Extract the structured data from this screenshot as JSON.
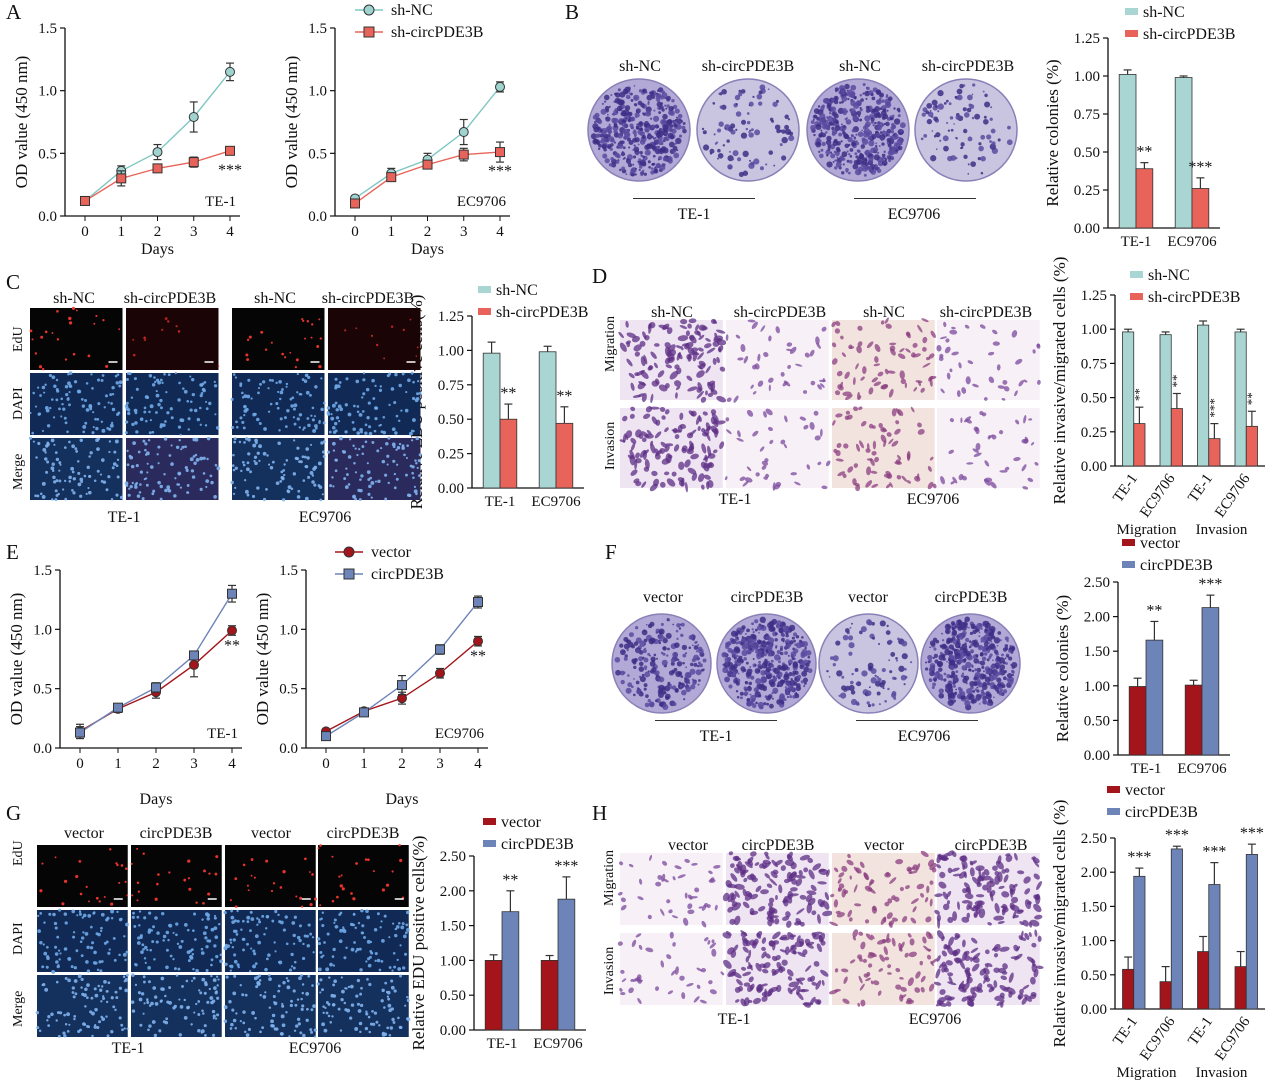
{
  "panel_labels": {
    "A": "A",
    "B": "B",
    "C": "C",
    "D": "D",
    "E": "E",
    "F": "F",
    "G": "G",
    "H": "H"
  },
  "groups": {
    "knockdown": [
      "sh-NC",
      "sh-circPDE3B"
    ],
    "overexpression": [
      "vector",
      "circPDE3B"
    ],
    "cell_lines": [
      "TE-1",
      "EC9706"
    ],
    "stains": [
      "EdU",
      "DAPI",
      "Merge"
    ],
    "assays": [
      "Migration",
      "Invasion"
    ]
  },
  "colors": {
    "shNC": "#a9d6d3",
    "shNC_marker": "#9fd3cf",
    "shcirc": "#e8645a",
    "vector": "#a3151b",
    "circPDE3B": "#6d84b8",
    "crystal_violet_plate": "#8d7fbf",
    "micro_migration": "#cfbfe0",
    "edu_dark": "#050505"
  },
  "chart_data": [
    {
      "id": "A-TE-1",
      "type": "line",
      "xlabel": "Days",
      "ylabel": "OD value (450 nm)",
      "annotation": "TE-1",
      "sig": "***",
      "x": [
        0,
        1,
        2,
        3,
        4
      ],
      "ylim": [
        0,
        1.5
      ],
      "yticks": [
        "0.0",
        "0.5",
        "1.0",
        "1.5"
      ],
      "series": [
        {
          "name": "sh-NC",
          "values": [
            0.12,
            0.36,
            0.51,
            0.79,
            1.15
          ],
          "err": [
            0.03,
            0.04,
            0.06,
            0.12,
            0.07
          ]
        },
        {
          "name": "sh-circPDE3B",
          "values": [
            0.12,
            0.3,
            0.38,
            0.43,
            0.52
          ],
          "err": [
            0.03,
            0.06,
            0.03,
            0.04,
            0.03
          ]
        }
      ]
    },
    {
      "id": "A-EC9706",
      "type": "line",
      "xlabel": "Days",
      "ylabel": "OD value (450 nm)",
      "annotation": "EC9706",
      "sig": "***",
      "x": [
        0,
        1,
        2,
        3,
        4
      ],
      "ylim": [
        0,
        1.5
      ],
      "yticks": [
        "0.0",
        "0.5",
        "1.0",
        "1.5"
      ],
      "series": [
        {
          "name": "sh-NC",
          "values": [
            0.14,
            0.34,
            0.45,
            0.67,
            1.03
          ],
          "err": [
            0.02,
            0.04,
            0.05,
            0.1,
            0.04
          ]
        },
        {
          "name": "sh-circPDE3B",
          "values": [
            0.1,
            0.31,
            0.41,
            0.49,
            0.51
          ],
          "err": [
            0.02,
            0.03,
            0.03,
            0.05,
            0.08
          ]
        }
      ]
    },
    {
      "id": "B",
      "type": "bar",
      "ylabel": "Relative colonies (%)",
      "categories": [
        "TE-1",
        "EC9706"
      ],
      "ylim": [
        0,
        1.25
      ],
      "yticks": [
        "0.00",
        "0.25",
        "0.50",
        "0.75",
        "1.00",
        "1.25"
      ],
      "series": [
        {
          "name": "sh-NC",
          "values": [
            1.01,
            0.99
          ],
          "err": [
            0.03,
            0.01
          ]
        },
        {
          "name": "sh-circPDE3B",
          "values": [
            0.39,
            0.26
          ],
          "err": [
            0.04,
            0.07
          ]
        }
      ],
      "sig": [
        "**",
        "***"
      ]
    },
    {
      "id": "C",
      "type": "bar",
      "ylabel": "Relative EDU positive cells(%)",
      "categories": [
        "TE-1",
        "EC9706"
      ],
      "ylim": [
        0,
        1.25
      ],
      "yticks": [
        "0.00",
        "0.25",
        "0.50",
        "0.75",
        "1.00",
        "1.25"
      ],
      "series": [
        {
          "name": "sh-NC",
          "values": [
            0.98,
            0.99
          ],
          "err": [
            0.08,
            0.04
          ]
        },
        {
          "name": "sh-circPDE3B",
          "values": [
            0.5,
            0.47
          ],
          "err": [
            0.11,
            0.12
          ]
        }
      ],
      "sig": [
        "**",
        "**"
      ]
    },
    {
      "id": "D",
      "type": "bar",
      "ylabel": "Relative invasive/migrated cells (%)",
      "categories": [
        "TE-1",
        "EC9706",
        "TE-1",
        "EC9706"
      ],
      "group_labels": [
        "Migration",
        "Invasion"
      ],
      "ylim": [
        0,
        1.25
      ],
      "yticks": [
        "0.00",
        "0.25",
        "0.50",
        "0.75",
        "1.00",
        "1.25"
      ],
      "series": [
        {
          "name": "sh-NC",
          "values": [
            0.98,
            0.96,
            1.03,
            0.98
          ],
          "err": [
            0.02,
            0.02,
            0.03,
            0.02
          ]
        },
        {
          "name": "sh-circPDE3B",
          "values": [
            0.31,
            0.42,
            0.2,
            0.29
          ],
          "err": [
            0.12,
            0.11,
            0.11,
            0.11
          ]
        }
      ],
      "sig": [
        "**",
        "**",
        "***",
        "**"
      ]
    },
    {
      "id": "E-TE-1",
      "type": "line",
      "xlabel": "Days",
      "ylabel": "OD value (450 nm)",
      "annotation": "TE-1",
      "sig": "**",
      "x": [
        0,
        1,
        2,
        3,
        4
      ],
      "ylim": [
        0,
        1.5
      ],
      "yticks": [
        "0.0",
        "0.5",
        "1.0",
        "1.5"
      ],
      "series": [
        {
          "name": "vector",
          "values": [
            0.14,
            0.33,
            0.47,
            0.7,
            0.99
          ],
          "err": [
            0.06,
            0.03,
            0.05,
            0.1,
            0.04
          ]
        },
        {
          "name": "circPDE3B",
          "values": [
            0.13,
            0.34,
            0.51,
            0.78,
            1.3
          ],
          "err": [
            0.05,
            0.03,
            0.04,
            0.03,
            0.07
          ]
        }
      ]
    },
    {
      "id": "E-EC9706",
      "type": "line",
      "xlabel": "Days",
      "ylabel": "OD value (450 nm)",
      "annotation": "EC9706",
      "sig": "**",
      "x": [
        0,
        1,
        2,
        3,
        4
      ],
      "ylim": [
        0,
        1.5
      ],
      "yticks": [
        "0.0",
        "0.5",
        "1.0",
        "1.5"
      ],
      "series": [
        {
          "name": "vector",
          "values": [
            0.14,
            0.31,
            0.42,
            0.63,
            0.9
          ],
          "err": [
            0.02,
            0.02,
            0.05,
            0.04,
            0.04
          ]
        },
        {
          "name": "circPDE3B",
          "values": [
            0.1,
            0.3,
            0.53,
            0.83,
            1.23
          ],
          "err": [
            0.03,
            0.02,
            0.08,
            0.04,
            0.05
          ]
        }
      ]
    },
    {
      "id": "F",
      "type": "bar",
      "ylabel": "Relative colonies (%)",
      "categories": [
        "TE-1",
        "EC9706"
      ],
      "ylim": [
        0,
        2.5
      ],
      "yticks": [
        "0.00",
        "0.50",
        "1.00",
        "1.50",
        "2.00",
        "2.50"
      ],
      "series": [
        {
          "name": "vector",
          "values": [
            0.99,
            1.01
          ],
          "err": [
            0.12,
            0.07
          ]
        },
        {
          "name": "circPDE3B",
          "values": [
            1.66,
            2.13
          ],
          "err": [
            0.27,
            0.18
          ]
        }
      ],
      "sig": [
        "**",
        "***"
      ]
    },
    {
      "id": "G",
      "type": "bar",
      "ylabel": "Relative EDU positive cells(%)",
      "categories": [
        "TE-1",
        "EC9706"
      ],
      "ylim": [
        0,
        2.5
      ],
      "yticks": [
        "0.00",
        "0.50",
        "1.00",
        "1.50",
        "2.00",
        "2.50"
      ],
      "series": [
        {
          "name": "vector",
          "values": [
            1.0,
            1.0
          ],
          "err": [
            0.08,
            0.07
          ]
        },
        {
          "name": "circPDE3B",
          "values": [
            1.7,
            1.88
          ],
          "err": [
            0.3,
            0.32
          ]
        }
      ],
      "sig": [
        "**",
        "***"
      ]
    },
    {
      "id": "H",
      "type": "bar",
      "ylabel": "Relative invasive/migrated cells (%)",
      "categories": [
        "TE-1",
        "EC9706",
        "TE-1",
        "EC9706"
      ],
      "group_labels": [
        "Migration",
        "Invasion"
      ],
      "ylim": [
        0,
        2.5
      ],
      "yticks": [
        "0.00",
        "0.50",
        "1.00",
        "1.50",
        "2.00",
        "2.50"
      ],
      "series": [
        {
          "name": "vector",
          "values": [
            0.58,
            0.4,
            0.84,
            0.62
          ],
          "err": [
            0.18,
            0.22,
            0.22,
            0.22
          ]
        },
        {
          "name": "circPDE3B",
          "values": [
            1.94,
            2.34,
            1.82,
            2.26
          ],
          "err": [
            0.12,
            0.04,
            0.32,
            0.15
          ]
        }
      ],
      "sig": [
        "***",
        "***",
        "***",
        "***"
      ]
    }
  ]
}
